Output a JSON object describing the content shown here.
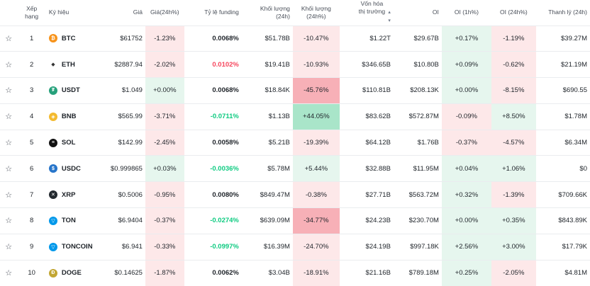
{
  "columns": [
    "Xếp hạng",
    "Ký hiệu",
    "Giá",
    "Giá(24h%)",
    "Tỷ lệ funding",
    "Khối lượng (24h)",
    "Khối lượng (24h%)",
    "Vốn hóa thị trường",
    "OI",
    "OI (1h%)",
    "OI (24h%)",
    "Thanh lý (24h)"
  ],
  "colors": {
    "neg_bg": "#fde8e9",
    "pos_bg": "#e6f6ee",
    "neg_strong": "#f7b0b7",
    "pos_strong": "#a9e5c9"
  },
  "rows": [
    {
      "rank": "1",
      "symbol": "BTC",
      "icon": "bitcoin-icon",
      "icon_color": "#f7931a",
      "icon_glyph": "₿",
      "price": "$61752",
      "chg": "-1.23%",
      "funding": "0.0068%",
      "vol": "$51.78B",
      "volchg": "-10.47%",
      "mcap": "$1.22T",
      "oi": "$29.67B",
      "oi1h": "+0.17%",
      "oi24h": "-1.19%",
      "liq": "$39.27M"
    },
    {
      "rank": "2",
      "symbol": "ETH",
      "icon": "ethereum-icon",
      "icon_color": "#ffffff",
      "icon_glyph": "◆",
      "price": "$2887.94",
      "chg": "-2.02%",
      "funding": "0.0102%",
      "vol": "$19.41B",
      "volchg": "-10.93%",
      "mcap": "$346.65B",
      "oi": "$10.80B",
      "oi1h": "+0.09%",
      "oi24h": "-0.62%",
      "liq": "$21.19M"
    },
    {
      "rank": "3",
      "symbol": "USDT",
      "icon": "tether-icon",
      "icon_color": "#26a17b",
      "icon_glyph": "₮",
      "price": "$1.049",
      "chg": "+0.00%",
      "funding": "0.0068%",
      "vol": "$18.84K",
      "volchg": "-45.76%",
      "mcap": "$110.81B",
      "oi": "$208.13K",
      "oi1h": "+0.00%",
      "oi24h": "-8.15%",
      "liq": "$690.55"
    },
    {
      "rank": "4",
      "symbol": "BNB",
      "icon": "bnb-icon",
      "icon_color": "#f3ba2f",
      "icon_glyph": "◈",
      "price": "$565.99",
      "chg": "-3.71%",
      "funding": "-0.0711%",
      "vol": "$1.13B",
      "volchg": "+44.05%",
      "mcap": "$83.62B",
      "oi": "$572.87M",
      "oi1h": "-0.09%",
      "oi24h": "+8.50%",
      "liq": "$1.78M"
    },
    {
      "rank": "5",
      "symbol": "SOL",
      "icon": "solana-icon",
      "icon_color": "#111111",
      "icon_glyph": "≡",
      "price": "$142.99",
      "chg": "-2.45%",
      "funding": "0.0058%",
      "vol": "$5.21B",
      "volchg": "-19.39%",
      "mcap": "$64.12B",
      "oi": "$1.76B",
      "oi1h": "-0.37%",
      "oi24h": "-4.57%",
      "liq": "$6.34M"
    },
    {
      "rank": "6",
      "symbol": "USDC",
      "icon": "usdc-icon",
      "icon_color": "#2775ca",
      "icon_glyph": "$",
      "price": "$0.999865",
      "chg": "+0.03%",
      "funding": "-0.0036%",
      "vol": "$5.78M",
      "volchg": "+5.44%",
      "mcap": "$32.88B",
      "oi": "$11.95M",
      "oi1h": "+0.04%",
      "oi24h": "+1.06%",
      "liq": "$0"
    },
    {
      "rank": "7",
      "symbol": "XRP",
      "icon": "xrp-icon",
      "icon_color": "#23292f",
      "icon_glyph": "✕",
      "price": "$0.5006",
      "chg": "-0.95%",
      "funding": "0.0080%",
      "vol": "$849.47M",
      "volchg": "-0.38%",
      "mcap": "$27.71B",
      "oi": "$563.72M",
      "oi1h": "+0.32%",
      "oi24h": "-1.39%",
      "liq": "$709.66K"
    },
    {
      "rank": "8",
      "symbol": "TON",
      "icon": "ton-icon",
      "icon_color": "#0098ea",
      "icon_glyph": "▽",
      "price": "$6.9404",
      "chg": "-0.37%",
      "funding": "-0.0274%",
      "vol": "$639.09M",
      "volchg": "-34.77%",
      "mcap": "$24.23B",
      "oi": "$230.70M",
      "oi1h": "+0.00%",
      "oi24h": "+0.35%",
      "liq": "$843.89K"
    },
    {
      "rank": "9",
      "symbol": "TONCOIN",
      "icon": "toncoin-icon",
      "icon_color": "#0098ea",
      "icon_glyph": "▽",
      "price": "$6.941",
      "chg": "-0.33%",
      "funding": "-0.0997%",
      "vol": "$16.39M",
      "volchg": "-24.70%",
      "mcap": "$24.19B",
      "oi": "$997.18K",
      "oi1h": "+2.56%",
      "oi24h": "+3.00%",
      "liq": "$17.79K"
    },
    {
      "rank": "10",
      "symbol": "DOGE",
      "icon": "dogecoin-icon",
      "icon_color": "#c2a633",
      "icon_glyph": "Ð",
      "price": "$0.14625",
      "chg": "-1.87%",
      "funding": "0.0062%",
      "vol": "$3.04B",
      "volchg": "-18.91%",
      "mcap": "$21.16B",
      "oi": "$789.18M",
      "oi1h": "+0.25%",
      "oi24h": "-2.05%",
      "liq": "$4.81M"
    }
  ]
}
